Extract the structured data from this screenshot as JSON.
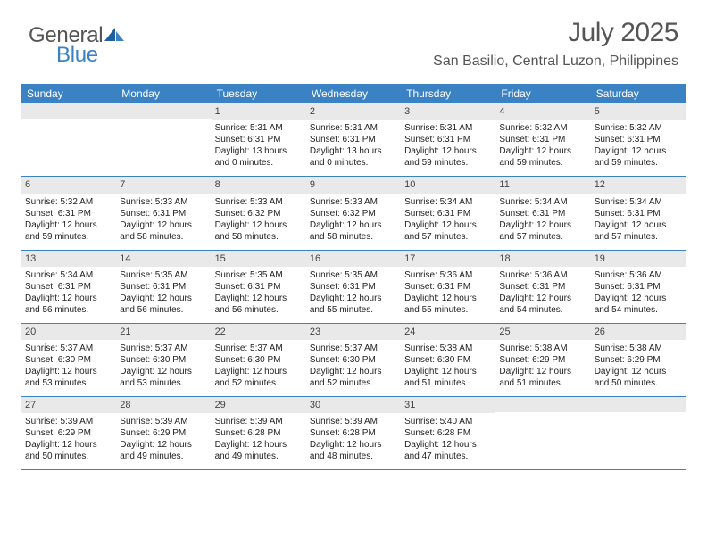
{
  "brand": {
    "text1": "General",
    "text2": "Blue",
    "color_gray": "#555555",
    "color_blue": "#3b82c4"
  },
  "title": "July 2025",
  "location": "San Basilio, Central Luzon, Philippines",
  "header_bg": "#3b82c4",
  "daynum_bg": "#e9e9e9",
  "day_names": [
    "Sunday",
    "Monday",
    "Tuesday",
    "Wednesday",
    "Thursday",
    "Friday",
    "Saturday"
  ],
  "weeks": [
    [
      null,
      null,
      {
        "n": "1",
        "sr": "Sunrise: 5:31 AM",
        "ss": "Sunset: 6:31 PM",
        "dl1": "Daylight: 13 hours",
        "dl2": "and 0 minutes."
      },
      {
        "n": "2",
        "sr": "Sunrise: 5:31 AM",
        "ss": "Sunset: 6:31 PM",
        "dl1": "Daylight: 13 hours",
        "dl2": "and 0 minutes."
      },
      {
        "n": "3",
        "sr": "Sunrise: 5:31 AM",
        "ss": "Sunset: 6:31 PM",
        "dl1": "Daylight: 12 hours",
        "dl2": "and 59 minutes."
      },
      {
        "n": "4",
        "sr": "Sunrise: 5:32 AM",
        "ss": "Sunset: 6:31 PM",
        "dl1": "Daylight: 12 hours",
        "dl2": "and 59 minutes."
      },
      {
        "n": "5",
        "sr": "Sunrise: 5:32 AM",
        "ss": "Sunset: 6:31 PM",
        "dl1": "Daylight: 12 hours",
        "dl2": "and 59 minutes."
      }
    ],
    [
      {
        "n": "6",
        "sr": "Sunrise: 5:32 AM",
        "ss": "Sunset: 6:31 PM",
        "dl1": "Daylight: 12 hours",
        "dl2": "and 59 minutes."
      },
      {
        "n": "7",
        "sr": "Sunrise: 5:33 AM",
        "ss": "Sunset: 6:31 PM",
        "dl1": "Daylight: 12 hours",
        "dl2": "and 58 minutes."
      },
      {
        "n": "8",
        "sr": "Sunrise: 5:33 AM",
        "ss": "Sunset: 6:32 PM",
        "dl1": "Daylight: 12 hours",
        "dl2": "and 58 minutes."
      },
      {
        "n": "9",
        "sr": "Sunrise: 5:33 AM",
        "ss": "Sunset: 6:32 PM",
        "dl1": "Daylight: 12 hours",
        "dl2": "and 58 minutes."
      },
      {
        "n": "10",
        "sr": "Sunrise: 5:34 AM",
        "ss": "Sunset: 6:31 PM",
        "dl1": "Daylight: 12 hours",
        "dl2": "and 57 minutes."
      },
      {
        "n": "11",
        "sr": "Sunrise: 5:34 AM",
        "ss": "Sunset: 6:31 PM",
        "dl1": "Daylight: 12 hours",
        "dl2": "and 57 minutes."
      },
      {
        "n": "12",
        "sr": "Sunrise: 5:34 AM",
        "ss": "Sunset: 6:31 PM",
        "dl1": "Daylight: 12 hours",
        "dl2": "and 57 minutes."
      }
    ],
    [
      {
        "n": "13",
        "sr": "Sunrise: 5:34 AM",
        "ss": "Sunset: 6:31 PM",
        "dl1": "Daylight: 12 hours",
        "dl2": "and 56 minutes."
      },
      {
        "n": "14",
        "sr": "Sunrise: 5:35 AM",
        "ss": "Sunset: 6:31 PM",
        "dl1": "Daylight: 12 hours",
        "dl2": "and 56 minutes."
      },
      {
        "n": "15",
        "sr": "Sunrise: 5:35 AM",
        "ss": "Sunset: 6:31 PM",
        "dl1": "Daylight: 12 hours",
        "dl2": "and 56 minutes."
      },
      {
        "n": "16",
        "sr": "Sunrise: 5:35 AM",
        "ss": "Sunset: 6:31 PM",
        "dl1": "Daylight: 12 hours",
        "dl2": "and 55 minutes."
      },
      {
        "n": "17",
        "sr": "Sunrise: 5:36 AM",
        "ss": "Sunset: 6:31 PM",
        "dl1": "Daylight: 12 hours",
        "dl2": "and 55 minutes."
      },
      {
        "n": "18",
        "sr": "Sunrise: 5:36 AM",
        "ss": "Sunset: 6:31 PM",
        "dl1": "Daylight: 12 hours",
        "dl2": "and 54 minutes."
      },
      {
        "n": "19",
        "sr": "Sunrise: 5:36 AM",
        "ss": "Sunset: 6:31 PM",
        "dl1": "Daylight: 12 hours",
        "dl2": "and 54 minutes."
      }
    ],
    [
      {
        "n": "20",
        "sr": "Sunrise: 5:37 AM",
        "ss": "Sunset: 6:30 PM",
        "dl1": "Daylight: 12 hours",
        "dl2": "and 53 minutes."
      },
      {
        "n": "21",
        "sr": "Sunrise: 5:37 AM",
        "ss": "Sunset: 6:30 PM",
        "dl1": "Daylight: 12 hours",
        "dl2": "and 53 minutes."
      },
      {
        "n": "22",
        "sr": "Sunrise: 5:37 AM",
        "ss": "Sunset: 6:30 PM",
        "dl1": "Daylight: 12 hours",
        "dl2": "and 52 minutes."
      },
      {
        "n": "23",
        "sr": "Sunrise: 5:37 AM",
        "ss": "Sunset: 6:30 PM",
        "dl1": "Daylight: 12 hours",
        "dl2": "and 52 minutes."
      },
      {
        "n": "24",
        "sr": "Sunrise: 5:38 AM",
        "ss": "Sunset: 6:30 PM",
        "dl1": "Daylight: 12 hours",
        "dl2": "and 51 minutes."
      },
      {
        "n": "25",
        "sr": "Sunrise: 5:38 AM",
        "ss": "Sunset: 6:29 PM",
        "dl1": "Daylight: 12 hours",
        "dl2": "and 51 minutes."
      },
      {
        "n": "26",
        "sr": "Sunrise: 5:38 AM",
        "ss": "Sunset: 6:29 PM",
        "dl1": "Daylight: 12 hours",
        "dl2": "and 50 minutes."
      }
    ],
    [
      {
        "n": "27",
        "sr": "Sunrise: 5:39 AM",
        "ss": "Sunset: 6:29 PM",
        "dl1": "Daylight: 12 hours",
        "dl2": "and 50 minutes."
      },
      {
        "n": "28",
        "sr": "Sunrise: 5:39 AM",
        "ss": "Sunset: 6:29 PM",
        "dl1": "Daylight: 12 hours",
        "dl2": "and 49 minutes."
      },
      {
        "n": "29",
        "sr": "Sunrise: 5:39 AM",
        "ss": "Sunset: 6:28 PM",
        "dl1": "Daylight: 12 hours",
        "dl2": "and 49 minutes."
      },
      {
        "n": "30",
        "sr": "Sunrise: 5:39 AM",
        "ss": "Sunset: 6:28 PM",
        "dl1": "Daylight: 12 hours",
        "dl2": "and 48 minutes."
      },
      {
        "n": "31",
        "sr": "Sunrise: 5:40 AM",
        "ss": "Sunset: 6:28 PM",
        "dl1": "Daylight: 12 hours",
        "dl2": "and 47 minutes."
      },
      null,
      null
    ]
  ]
}
